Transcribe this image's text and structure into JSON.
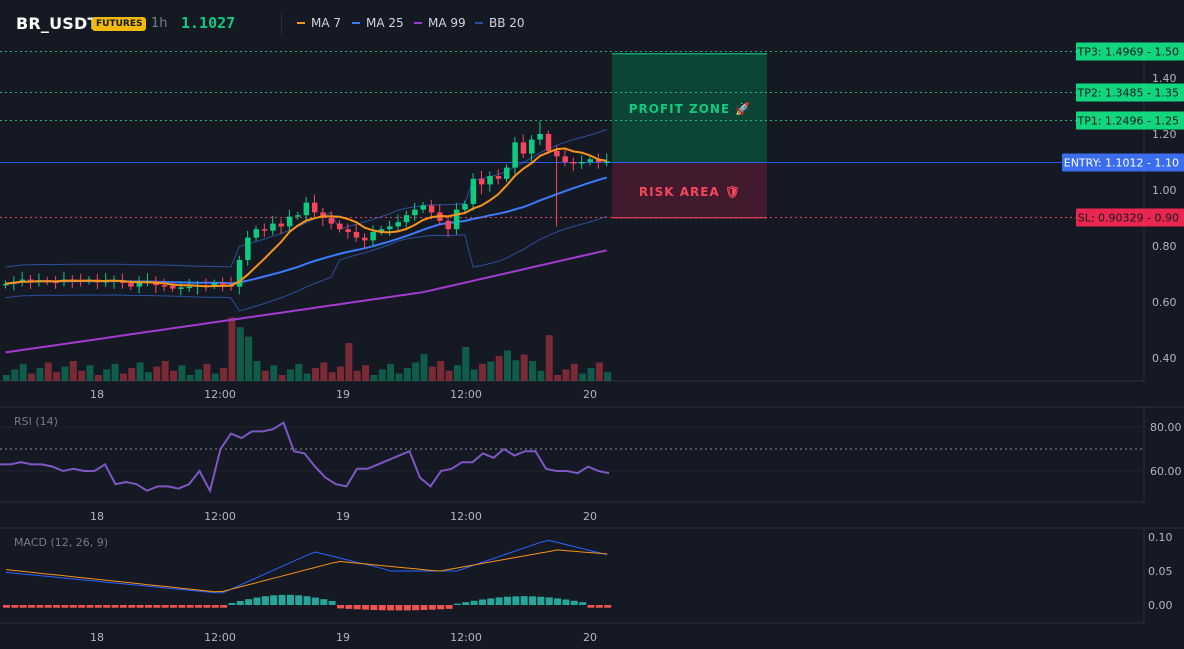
{
  "header": {
    "symbol": "BR_USDT",
    "badge": "FUTURES",
    "timeframe": "1h",
    "last_price": "1.1027",
    "indicators": [
      {
        "label": "MA 7",
        "color": "#f7931a"
      },
      {
        "label": "MA 25",
        "color": "#3a7bfd"
      },
      {
        "label": "MA 99",
        "color": "#a23ccf"
      },
      {
        "label": "BB 20",
        "color": "#2b4f9a"
      }
    ]
  },
  "colors": {
    "up": "#0ecb81",
    "down": "#f6465d",
    "tp": "#0ecb81",
    "entry": "#2962ff",
    "sl": "#f6465d"
  },
  "main_axis": {
    "ticks": [
      "1.40",
      "1.20",
      "1.00",
      "0.80",
      "0.60",
      "0.40"
    ],
    "tick_values": [
      1.4,
      1.2,
      1.0,
      0.8,
      0.6,
      0.4
    ]
  },
  "time_axis": {
    "labels": [
      "18",
      "12:00",
      "19",
      "12:00",
      "20"
    ]
  },
  "levels": [
    {
      "label": "TP3: 1.4969",
      "axis": "1.50",
      "value": 1.4969,
      "kind": "tp"
    },
    {
      "label": "TP2: 1.3485",
      "axis": "1.35",
      "value": 1.3485,
      "kind": "tp"
    },
    {
      "label": "TP1: 1.2496",
      "axis": "1.25",
      "value": 1.2496,
      "kind": "tp"
    },
    {
      "label": "ENTRY: 1.1012",
      "axis": "1.10",
      "value": 1.1012,
      "kind": "entry"
    },
    {
      "label": "SL: 0.90329",
      "axis": "0.90",
      "value": 0.90329,
      "kind": "sl"
    }
  ],
  "zones": {
    "profit": "PROFIT ZONE 🚀",
    "risk": "RISK AREA 🛡"
  },
  "rsi": {
    "title": "RSI (14)",
    "ticks": [
      "80.00",
      "60.00"
    ],
    "tick_values": [
      80,
      60
    ]
  },
  "macd": {
    "title": "MACD (12, 26, 9)",
    "ticks": [
      "0.10",
      "0.05",
      "0.00"
    ],
    "tick_values": [
      0.1,
      0.05,
      0.0
    ]
  }
}
